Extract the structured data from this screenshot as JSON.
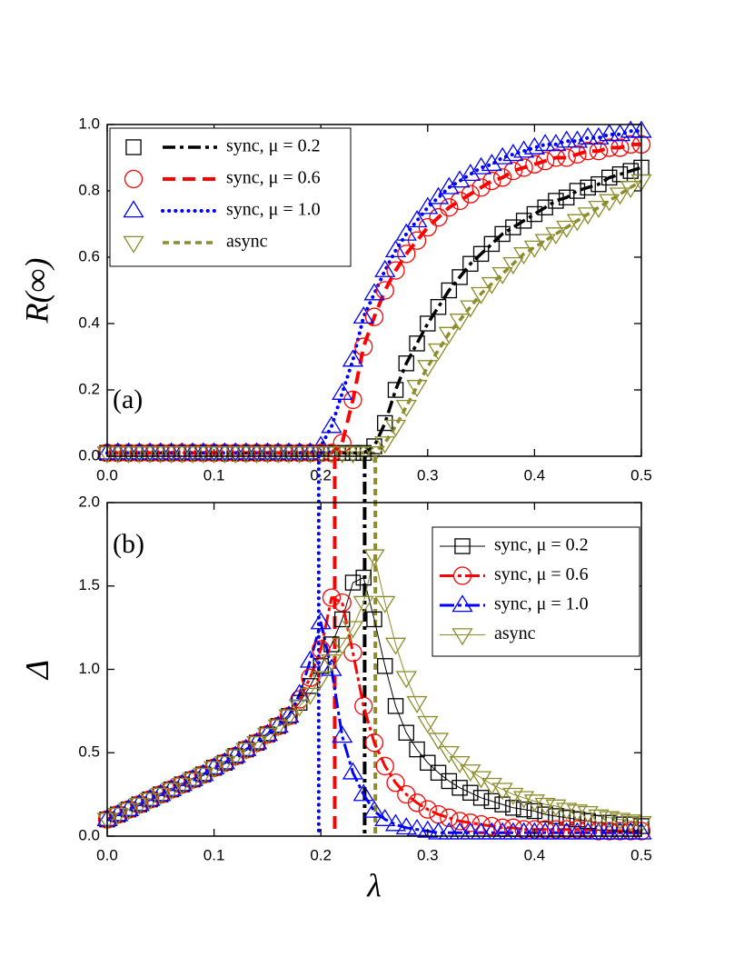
{
  "chart_data": [
    {
      "type": "line",
      "panel_label": "(a)",
      "y_label": "R(∞)",
      "legend": "upper left",
      "x": [
        0,
        0.01,
        0.02,
        0.03,
        0.04,
        0.05,
        0.06,
        0.07,
        0.08,
        0.09,
        0.1,
        0.11,
        0.12,
        0.13,
        0.14,
        0.15,
        0.16,
        0.17,
        0.18,
        0.19,
        0.2,
        0.21,
        0.22,
        0.23,
        0.24,
        0.25,
        0.26,
        0.27,
        0.28,
        0.29,
        0.3,
        0.31,
        0.32,
        0.33,
        0.34,
        0.35,
        0.36,
        0.37,
        0.38,
        0.39,
        0.4,
        0.41,
        0.42,
        0.43,
        0.44,
        0.45,
        0.46,
        0.47,
        0.48,
        0.49,
        0.5
      ],
      "xlim": [
        0,
        0.5
      ],
      "xticks": [
        {
          "value": 0,
          "label": "0.0"
        },
        {
          "value": 0.1,
          "label": "0.1"
        },
        {
          "value": 0.2,
          "label": "0.2"
        },
        {
          "value": 0.3,
          "label": "0.3"
        },
        {
          "value": 0.4,
          "label": "0.4"
        },
        {
          "value": 0.5,
          "label": "0.5"
        }
      ],
      "ylim": [
        0,
        1
      ],
      "yticks": [
        {
          "value": 0,
          "label": "0.0"
        },
        {
          "value": 0.2,
          "label": "0.2"
        },
        {
          "value": 0.4,
          "label": "0.4"
        },
        {
          "value": 0.6,
          "label": "0.6"
        },
        {
          "value": 0.8,
          "label": "0.8"
        },
        {
          "value": 1,
          "label": "1.0"
        }
      ],
      "series": [
        {
          "name": "sync, μ = 0.2",
          "color": "#000000",
          "marker": "square",
          "line_style": "dash-dot",
          "values": [
            0.01,
            0.01,
            0.01,
            0.01,
            0.01,
            0.01,
            0.01,
            0.01,
            0.01,
            0.01,
            0.01,
            0.01,
            0.01,
            0.01,
            0.01,
            0.01,
            0.01,
            0.01,
            0.01,
            0.01,
            0.01,
            0.01,
            0.01,
            0.01,
            0.01,
            0.03,
            0.1,
            0.2,
            0.28,
            0.34,
            0.4,
            0.45,
            0.5,
            0.54,
            0.58,
            0.61,
            0.64,
            0.67,
            0.69,
            0.71,
            0.73,
            0.75,
            0.77,
            0.78,
            0.8,
            0.81,
            0.82,
            0.84,
            0.85,
            0.86,
            0.87
          ]
        },
        {
          "name": "sync, μ = 0.6",
          "color": "#ff0000",
          "marker": "circle",
          "line_style": "dash",
          "values": [
            0.01,
            0.01,
            0.01,
            0.01,
            0.01,
            0.01,
            0.01,
            0.01,
            0.01,
            0.01,
            0.01,
            0.01,
            0.01,
            0.01,
            0.01,
            0.01,
            0.01,
            0.01,
            0.01,
            0.01,
            0.01,
            0.01,
            0.04,
            0.17,
            0.33,
            0.42,
            0.5,
            0.56,
            0.61,
            0.65,
            0.69,
            0.72,
            0.75,
            0.77,
            0.79,
            0.81,
            0.83,
            0.84,
            0.86,
            0.87,
            0.88,
            0.89,
            0.9,
            0.9,
            0.91,
            0.92,
            0.92,
            0.93,
            0.93,
            0.94,
            0.94
          ]
        },
        {
          "name": "sync, μ = 1.0",
          "color": "#0000ff",
          "marker": "triangle-up",
          "line_style": "dot",
          "values": [
            0.01,
            0.01,
            0.01,
            0.01,
            0.01,
            0.01,
            0.01,
            0.01,
            0.01,
            0.01,
            0.01,
            0.01,
            0.01,
            0.01,
            0.01,
            0.01,
            0.01,
            0.01,
            0.01,
            0.01,
            0.03,
            0.09,
            0.19,
            0.29,
            0.42,
            0.49,
            0.56,
            0.62,
            0.67,
            0.71,
            0.75,
            0.78,
            0.81,
            0.83,
            0.85,
            0.87,
            0.88,
            0.9,
            0.91,
            0.92,
            0.93,
            0.94,
            0.94,
            0.95,
            0.95,
            0.96,
            0.96,
            0.97,
            0.97,
            0.98,
            0.98
          ]
        },
        {
          "name": "async",
          "color": "#8c8c2a",
          "marker": "triangle-down",
          "line_style": "short-dash",
          "values": [
            0.01,
            0.01,
            0.01,
            0.01,
            0.01,
            0.01,
            0.01,
            0.01,
            0.01,
            0.01,
            0.01,
            0.01,
            0.01,
            0.01,
            0.01,
            0.01,
            0.01,
            0.01,
            0.01,
            0.01,
            0.01,
            0.01,
            0.01,
            0.01,
            0.01,
            0.01,
            0.04,
            0.09,
            0.15,
            0.21,
            0.27,
            0.32,
            0.37,
            0.41,
            0.45,
            0.49,
            0.52,
            0.55,
            0.58,
            0.61,
            0.63,
            0.65,
            0.67,
            0.69,
            0.71,
            0.73,
            0.75,
            0.77,
            0.79,
            0.81,
            0.83
          ]
        }
      ]
    },
    {
      "type": "line",
      "panel_label": "(b)",
      "y_label": "Δ",
      "x_label": "λ",
      "legend": "upper right",
      "x": [
        0,
        0.01,
        0.02,
        0.03,
        0.04,
        0.05,
        0.06,
        0.07,
        0.08,
        0.09,
        0.1,
        0.11,
        0.12,
        0.13,
        0.14,
        0.15,
        0.16,
        0.17,
        0.18,
        0.19,
        0.2,
        0.21,
        0.22,
        0.23,
        0.24,
        0.25,
        0.26,
        0.27,
        0.28,
        0.29,
        0.3,
        0.31,
        0.32,
        0.33,
        0.34,
        0.35,
        0.36,
        0.37,
        0.38,
        0.39,
        0.4,
        0.41,
        0.42,
        0.43,
        0.44,
        0.45,
        0.46,
        0.47,
        0.48,
        0.49,
        0.5
      ],
      "xlim": [
        0,
        0.5
      ],
      "xticks": [
        {
          "value": 0,
          "label": "0.0"
        },
        {
          "value": 0.1,
          "label": "0.1"
        },
        {
          "value": 0.2,
          "label": "0.2"
        },
        {
          "value": 0.3,
          "label": "0.3"
        },
        {
          "value": 0.4,
          "label": "0.4"
        },
        {
          "value": 0.5,
          "label": "0.5"
        }
      ],
      "ylim": [
        0,
        2
      ],
      "yticks": [
        {
          "value": 0,
          "label": "0.0"
        },
        {
          "value": 0.5,
          "label": "0.5"
        },
        {
          "value": 1,
          "label": "1.0"
        },
        {
          "value": 1.5,
          "label": "1.5"
        },
        {
          "value": 2,
          "label": "2.0"
        }
      ],
      "series": [
        {
          "name": "sync, μ = 0.2",
          "color": "#000000",
          "marker": "square",
          "line_style": "solid-thin",
          "threshold": 0.241,
          "values": [
            0.1,
            0.13,
            0.16,
            0.19,
            0.22,
            0.25,
            0.28,
            0.31,
            0.34,
            0.37,
            0.41,
            0.44,
            0.48,
            0.52,
            0.56,
            0.61,
            0.66,
            0.72,
            0.8,
            0.9,
            1.02,
            1.15,
            1.3,
            1.52,
            1.55,
            1.3,
            1.02,
            0.78,
            0.62,
            0.52,
            0.44,
            0.38,
            0.33,
            0.29,
            0.26,
            0.23,
            0.21,
            0.19,
            0.17,
            0.16,
            0.15,
            0.13,
            0.12,
            0.11,
            0.1,
            0.09,
            0.08,
            0.08,
            0.07,
            0.07,
            0.06
          ]
        },
        {
          "name": "sync, μ = 0.6",
          "color": "#ff0000",
          "marker": "circle",
          "line_style": "dash-dot-thick",
          "threshold": 0.213,
          "values": [
            0.1,
            0.13,
            0.16,
            0.19,
            0.22,
            0.25,
            0.28,
            0.31,
            0.34,
            0.37,
            0.41,
            0.44,
            0.48,
            0.52,
            0.56,
            0.61,
            0.66,
            0.72,
            0.82,
            0.95,
            1.12,
            1.43,
            1.4,
            1.1,
            0.78,
            0.56,
            0.42,
            0.32,
            0.25,
            0.2,
            0.16,
            0.13,
            0.11,
            0.09,
            0.08,
            0.07,
            0.06,
            0.05,
            0.05,
            0.04,
            0.04,
            0.04,
            0.04,
            0.04,
            0.04,
            0.04,
            0.03,
            0.03,
            0.03,
            0.03,
            0.03
          ]
        },
        {
          "name": "sync, μ = 1.0",
          "color": "#0000ff",
          "marker": "triangle-up",
          "line_style": "dash-dot-thick",
          "threshold": 0.198,
          "values": [
            0.1,
            0.13,
            0.16,
            0.19,
            0.22,
            0.25,
            0.28,
            0.31,
            0.34,
            0.37,
            0.41,
            0.44,
            0.48,
            0.52,
            0.56,
            0.61,
            0.66,
            0.72,
            0.85,
            1.05,
            1.28,
            1,
            0.6,
            0.38,
            0.25,
            0.15,
            0.1,
            0.07,
            0.05,
            0.04,
            0.03,
            0.02,
            0.02,
            0.02,
            0.02,
            0.02,
            0.02,
            0.02,
            0.02,
            0.02,
            0.02,
            0.02,
            0.02,
            0.02,
            0.02,
            0.02,
            0.02,
            0.02,
            0.02,
            0.02,
            0.02
          ]
        },
        {
          "name": "async",
          "color": "#8c8c2a",
          "marker": "triangle-down",
          "line_style": "solid-thin",
          "threshold": 0.251,
          "values": [
            0.1,
            0.13,
            0.16,
            0.19,
            0.22,
            0.25,
            0.28,
            0.31,
            0.34,
            0.37,
            0.41,
            0.44,
            0.48,
            0.52,
            0.56,
            0.61,
            0.66,
            0.72,
            0.78,
            0.85,
            0.95,
            1.05,
            1.15,
            1.25,
            1.4,
            1.68,
            1.4,
            1.15,
            0.95,
            0.8,
            0.68,
            0.58,
            0.5,
            0.44,
            0.39,
            0.35,
            0.31,
            0.28,
            0.25,
            0.23,
            0.21,
            0.19,
            0.18,
            0.16,
            0.15,
            0.14,
            0.12,
            0.11,
            0.1,
            0.09,
            0.08
          ]
        }
      ]
    }
  ]
}
